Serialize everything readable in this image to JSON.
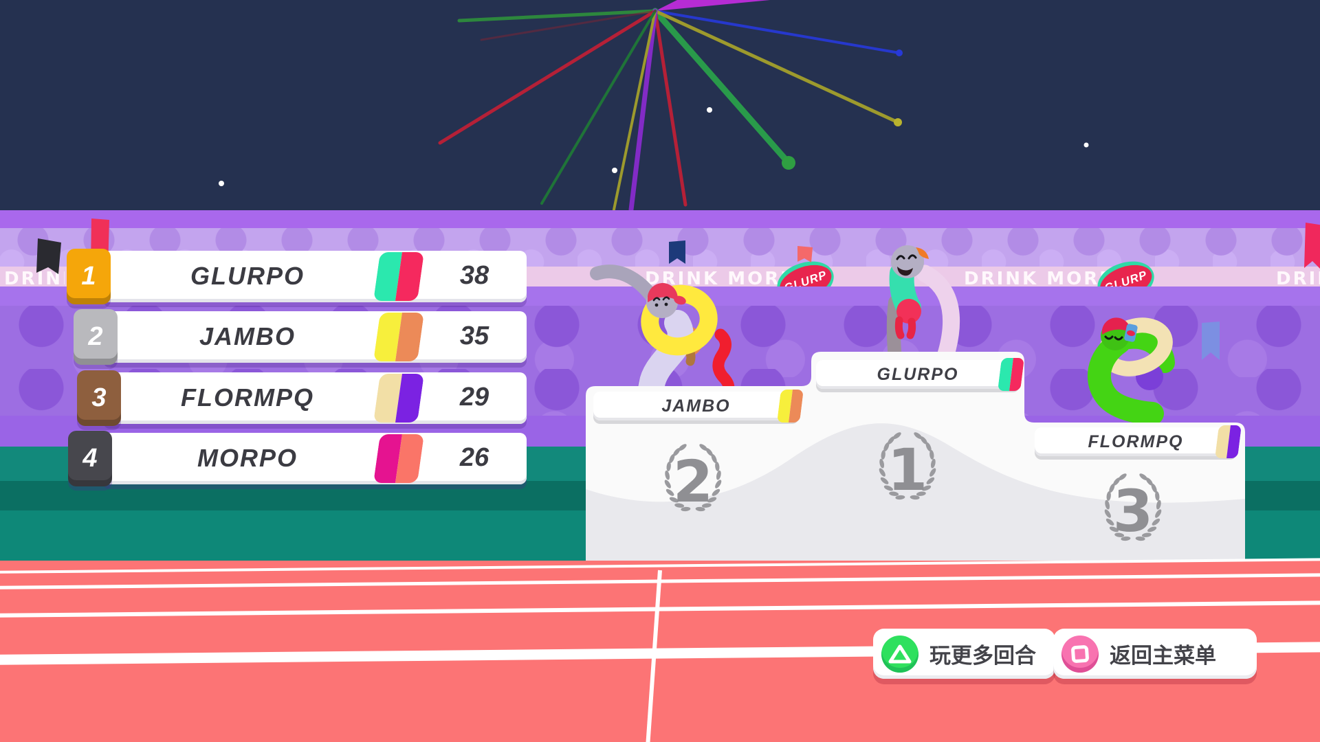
{
  "banner": {
    "slogan": "DRINK MORE",
    "brand": "GLURP"
  },
  "leaderboard": {
    "rows": [
      {
        "rank": "1",
        "name": "GLURPO",
        "score": "38",
        "badge": "#f5a60a",
        "flag": [
          "#2be8ae",
          "#f5295e"
        ]
      },
      {
        "rank": "2",
        "name": "JAMBO",
        "score": "35",
        "badge": "#b9b9bd",
        "flag": [
          "#f7ef3c",
          "#ec8a58"
        ]
      },
      {
        "rank": "3",
        "name": "FLORMPQ",
        "score": "29",
        "badge": "#8e5f3e",
        "flag": [
          "#f2dfa6",
          "#7b22e2"
        ]
      },
      {
        "rank": "4",
        "name": "MORPO",
        "score": "26",
        "badge": "#47474d",
        "flag": [
          "#e51390",
          "#fa7568"
        ]
      }
    ]
  },
  "podium": {
    "blocks": [
      {
        "place": "2",
        "name": "JAMBO",
        "flag": [
          "#f7ef3c",
          "#ec8a58"
        ]
      },
      {
        "place": "1",
        "name": "GLURPO",
        "flag": [
          "#2be8ae",
          "#f5295e"
        ]
      },
      {
        "place": "3",
        "name": "FLORMPQ",
        "flag": [
          "#f2dfa6",
          "#7b22e2"
        ]
      }
    ]
  },
  "actions": {
    "play_more": "玩更多回合",
    "main_menu": "返回主菜单"
  },
  "colors": {
    "sky": "#253150",
    "stands_purple": "#9d6ee2",
    "banner_pink": "#eccae8",
    "field_teal": "#0e8878",
    "track_red": "#fc7475",
    "laurel_gray": "#9a9a9e",
    "triangle_button_green": "#2ee05e",
    "square_button_pink": "#f873b0"
  }
}
